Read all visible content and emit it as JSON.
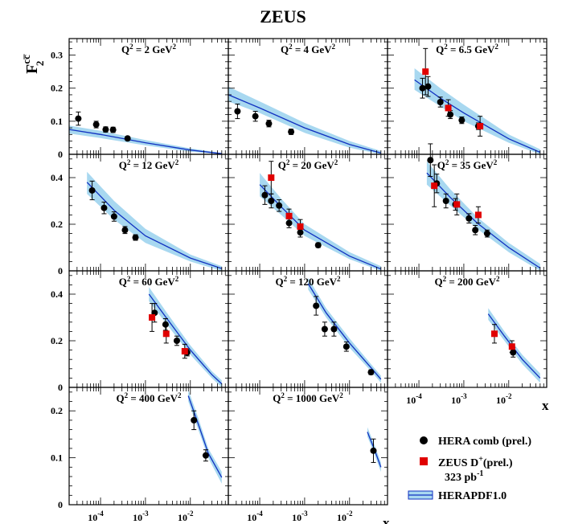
{
  "chart_data": {
    "type": "scatter",
    "title": "ZEUS",
    "ylabel": {
      "base": "F",
      "sup": "cc̅",
      "sub": "2"
    },
    "xlabel": "x",
    "x_scale": "log",
    "xlim": [
      2e-05,
      0.07
    ],
    "x_ticks": [
      {
        "value": 0.0001,
        "base": "10",
        "exp": "-4"
      },
      {
        "value": 0.001,
        "base": "10",
        "exp": "-3"
      },
      {
        "value": 0.01,
        "base": "10",
        "exp": "-2"
      }
    ],
    "legend": {
      "placement": "bottom-right",
      "entries": [
        {
          "key": "hera",
          "label": "HERA comb (prel.)",
          "marker": "circle",
          "color": "#000000"
        },
        {
          "key": "zeus",
          "label": "ZEUS D",
          "label_sup": "+",
          "label_suffix": "(prel.)",
          "label_line2": "323 pb",
          "label_line2_sup": "-1",
          "marker": "square",
          "color": "#e00000"
        },
        {
          "key": "pdf",
          "label": "HERAPDF1.0",
          "marker": "band",
          "color": "#a8d8f0",
          "line_color": "#1030c0"
        }
      ]
    },
    "panels": [
      {
        "q2": "2",
        "ylim": [
          0,
          0.35
        ],
        "yticks": [
          0,
          0.1,
          0.2,
          0.3
        ],
        "hera": [
          [
            3.2e-05,
            0.108,
            0.02
          ],
          [
            8e-05,
            0.09,
            0.01
          ],
          [
            0.00013,
            0.075,
            0.008
          ],
          [
            0.00019,
            0.074,
            0.008
          ],
          [
            0.0004,
            0.048,
            0.005
          ]
        ],
        "zeus": [],
        "band": [
          [
            2e-05,
            0.063,
            0.087
          ],
          [
            0.0001,
            0.049,
            0.071
          ],
          [
            0.001,
            0.027,
            0.043
          ],
          [
            0.01,
            0.008,
            0.018
          ],
          [
            0.05,
            0.0,
            0.004
          ]
        ],
        "curve": [
          [
            2e-05,
            0.075
          ],
          [
            0.0001,
            0.06
          ],
          [
            0.001,
            0.035
          ],
          [
            0.01,
            0.013
          ],
          [
            0.05,
            0.002
          ]
        ]
      },
      {
        "q2": "4",
        "ylim": [
          0,
          0.35
        ],
        "yticks": [
          0,
          0.1,
          0.2,
          0.3
        ],
        "hera": [
          [
            3.2e-05,
            0.13,
            0.022
          ],
          [
            8e-05,
            0.115,
            0.015
          ],
          [
            0.00016,
            0.093,
            0.01
          ],
          [
            0.0005,
            0.068,
            0.008
          ]
        ],
        "zeus": [],
        "band": [
          [
            2e-05,
            0.16,
            0.205
          ],
          [
            0.0001,
            0.125,
            0.16
          ],
          [
            0.001,
            0.065,
            0.095
          ],
          [
            0.01,
            0.02,
            0.04
          ],
          [
            0.05,
            0.0,
            0.01
          ]
        ],
        "curve": [
          [
            2e-05,
            0.18
          ],
          [
            0.0001,
            0.14
          ],
          [
            0.001,
            0.08
          ],
          [
            0.01,
            0.03
          ],
          [
            0.05,
            0.004
          ]
        ]
      },
      {
        "q2": "6.5",
        "ylim": [
          0,
          0.35
        ],
        "yticks": [
          0,
          0.1,
          0.2,
          0.3
        ],
        "hera": [
          [
            0.00012,
            0.2,
            0.03
          ],
          [
            0.00016,
            0.205,
            0.03
          ],
          [
            0.0003,
            0.158,
            0.015
          ],
          [
            0.0005,
            0.12,
            0.012
          ],
          [
            0.0009,
            0.103,
            0.01
          ],
          [
            0.0021,
            0.085,
            0.01
          ]
        ],
        "zeus": [
          [
            0.00014,
            0.25,
            0.07
          ],
          [
            0.00045,
            0.14,
            0.025
          ],
          [
            0.0023,
            0.085,
            0.03
          ]
        ],
        "band": [
          [
            8e-05,
            0.195,
            0.26
          ],
          [
            0.0003,
            0.145,
            0.2
          ],
          [
            0.001,
            0.1,
            0.15
          ],
          [
            0.01,
            0.035,
            0.06
          ],
          [
            0.05,
            0.0,
            0.015
          ]
        ],
        "curve": [
          [
            8e-05,
            0.225
          ],
          [
            0.0003,
            0.17
          ],
          [
            0.001,
            0.125
          ],
          [
            0.01,
            0.047
          ],
          [
            0.05,
            0.006
          ]
        ]
      },
      {
        "q2": "12",
        "ylim": [
          0,
          0.5
        ],
        "yticks": [
          0,
          0.2,
          0.4
        ],
        "hera": [
          [
            6.5e-05,
            0.345,
            0.04
          ],
          [
            0.00012,
            0.27,
            0.025
          ],
          [
            0.0002,
            0.233,
            0.02
          ],
          [
            0.00035,
            0.175,
            0.015
          ],
          [
            0.0006,
            0.143,
            0.012
          ]
        ],
        "zeus": [],
        "band": [
          [
            5e-05,
            0.33,
            0.425
          ],
          [
            0.0002,
            0.22,
            0.3
          ],
          [
            0.001,
            0.12,
            0.18
          ],
          [
            0.01,
            0.04,
            0.07
          ],
          [
            0.05,
            0.0,
            0.02
          ]
        ],
        "curve": [
          [
            5e-05,
            0.38
          ],
          [
            0.0002,
            0.26
          ],
          [
            0.001,
            0.15
          ],
          [
            0.01,
            0.055
          ],
          [
            0.05,
            0.01
          ]
        ]
      },
      {
        "q2": "20",
        "ylim": [
          0,
          0.5
        ],
        "yticks": [
          0,
          0.2,
          0.4
        ],
        "hera": [
          [
            0.00013,
            0.325,
            0.04
          ],
          [
            0.00018,
            0.3,
            0.03
          ],
          [
            0.00027,
            0.28,
            0.025
          ],
          [
            0.00045,
            0.205,
            0.02
          ],
          [
            0.0008,
            0.165,
            0.02
          ],
          [
            0.002,
            0.11,
            0.01
          ]
        ],
        "zeus": [
          [
            0.00018,
            0.4,
            0.07
          ],
          [
            0.00045,
            0.235,
            0.03
          ],
          [
            0.0008,
            0.19,
            0.03
          ]
        ],
        "band": [
          [
            0.0001,
            0.32,
            0.42
          ],
          [
            0.0003,
            0.24,
            0.31
          ],
          [
            0.001,
            0.15,
            0.2
          ],
          [
            0.01,
            0.05,
            0.08
          ],
          [
            0.05,
            0.0,
            0.02
          ]
        ],
        "curve": [
          [
            0.0001,
            0.37
          ],
          [
            0.0003,
            0.275
          ],
          [
            0.001,
            0.175
          ],
          [
            0.01,
            0.063
          ],
          [
            0.05,
            0.008
          ]
        ]
      },
      {
        "q2": "35",
        "ylim": [
          0,
          0.5
        ],
        "yticks": [
          0,
          0.2,
          0.4
        ],
        "hera": [
          [
            0.00018,
            0.475,
            0.07
          ],
          [
            0.00025,
            0.375,
            0.04
          ],
          [
            0.0004,
            0.3,
            0.03
          ],
          [
            0.00065,
            0.285,
            0.025
          ],
          [
            0.0013,
            0.225,
            0.02
          ],
          [
            0.0018,
            0.175,
            0.02
          ],
          [
            0.0033,
            0.16,
            0.015
          ]
        ],
        "zeus": [
          [
            0.00022,
            0.365,
            0.09
          ],
          [
            0.0007,
            0.285,
            0.045
          ],
          [
            0.0021,
            0.24,
            0.035
          ]
        ],
        "band": [
          [
            0.00015,
            0.37,
            0.47
          ],
          [
            0.0005,
            0.28,
            0.35
          ],
          [
            0.002,
            0.18,
            0.23
          ],
          [
            0.01,
            0.08,
            0.12
          ],
          [
            0.05,
            0.0,
            0.03
          ]
        ],
        "curve": [
          [
            0.00015,
            0.42
          ],
          [
            0.0005,
            0.315
          ],
          [
            0.002,
            0.205
          ],
          [
            0.01,
            0.1
          ],
          [
            0.05,
            0.012
          ]
        ]
      },
      {
        "q2": "60",
        "ylim": [
          0,
          0.5
        ],
        "yticks": [
          0,
          0.2,
          0.4
        ],
        "hera": [
          [
            0.0016,
            0.32,
            0.04
          ],
          [
            0.0028,
            0.27,
            0.025
          ],
          [
            0.005,
            0.2,
            0.02
          ],
          [
            0.0085,
            0.15,
            0.015
          ]
        ],
        "zeus": [
          [
            0.0014,
            0.3,
            0.06
          ],
          [
            0.0029,
            0.23,
            0.04
          ],
          [
            0.0075,
            0.155,
            0.03
          ]
        ],
        "band": [
          [
            0.0012,
            0.37,
            0.43
          ],
          [
            0.003,
            0.27,
            0.32
          ],
          [
            0.01,
            0.14,
            0.18
          ],
          [
            0.03,
            0.04,
            0.07
          ],
          [
            0.05,
            0.0,
            0.03
          ]
        ],
        "curve": [
          [
            0.0012,
            0.4
          ],
          [
            0.003,
            0.295
          ],
          [
            0.01,
            0.16
          ],
          [
            0.03,
            0.055
          ],
          [
            0.05,
            0.015
          ]
        ]
      },
      {
        "q2": "120",
        "ylim": [
          0,
          0.5
        ],
        "yticks": [
          0,
          0.2,
          0.4
        ],
        "hera": [
          [
            0.0018,
            0.35,
            0.04
          ],
          [
            0.0028,
            0.25,
            0.03
          ],
          [
            0.0045,
            0.25,
            0.03
          ],
          [
            0.0085,
            0.175,
            0.02
          ],
          [
            0.03,
            0.065,
            0.01
          ]
        ],
        "zeus": [],
        "band": [
          [
            0.0012,
            0.42,
            0.47
          ],
          [
            0.003,
            0.3,
            0.34
          ],
          [
            0.01,
            0.17,
            0.21
          ],
          [
            0.03,
            0.07,
            0.1
          ],
          [
            0.05,
            0.02,
            0.05
          ]
        ],
        "curve": [
          [
            0.0012,
            0.445
          ],
          [
            0.003,
            0.32
          ],
          [
            0.01,
            0.19
          ],
          [
            0.03,
            0.085
          ],
          [
            0.05,
            0.035
          ]
        ]
      },
      {
        "q2": "200",
        "ylim": [
          0,
          0.5
        ],
        "yticks": [
          0,
          0.2,
          0.4
        ],
        "hera": [
          [
            0.0125,
            0.15,
            0.02
          ]
        ],
        "zeus": [
          [
            0.0048,
            0.23,
            0.04
          ],
          [
            0.0118,
            0.175,
            0.025
          ]
        ],
        "band": [
          [
            0.0035,
            0.29,
            0.34
          ],
          [
            0.008,
            0.2,
            0.24
          ],
          [
            0.02,
            0.1,
            0.14
          ],
          [
            0.05,
            0.02,
            0.06
          ]
        ],
        "curve": [
          [
            0.0035,
            0.315
          ],
          [
            0.008,
            0.22
          ],
          [
            0.02,
            0.12
          ],
          [
            0.05,
            0.04
          ]
        ]
      },
      {
        "q2": "400",
        "ylim": [
          0,
          0.25
        ],
        "yticks": [
          0,
          0.1,
          0.2
        ],
        "hera": [
          [
            0.012,
            0.18,
            0.02
          ],
          [
            0.022,
            0.105,
            0.012
          ]
        ],
        "zeus": [],
        "band": [
          [
            0.009,
            0.22,
            0.245
          ],
          [
            0.015,
            0.16,
            0.185
          ],
          [
            0.025,
            0.1,
            0.12
          ],
          [
            0.05,
            0.045,
            0.07
          ]
        ],
        "curve": [
          [
            0.009,
            0.232
          ],
          [
            0.015,
            0.172
          ],
          [
            0.025,
            0.11
          ],
          [
            0.05,
            0.058
          ]
        ]
      },
      {
        "q2": "1000",
        "ylim": [
          0,
          0.25
        ],
        "yticks": [
          0,
          0.1,
          0.2
        ],
        "hera": [
          [
            0.034,
            0.115,
            0.025
          ]
        ],
        "zeus": [],
        "band": [
          [
            0.025,
            0.145,
            0.165
          ],
          [
            0.035,
            0.11,
            0.13
          ],
          [
            0.05,
            0.07,
            0.09
          ]
        ],
        "curve": [
          [
            0.025,
            0.155
          ],
          [
            0.035,
            0.12
          ],
          [
            0.05,
            0.08
          ]
        ]
      }
    ]
  }
}
